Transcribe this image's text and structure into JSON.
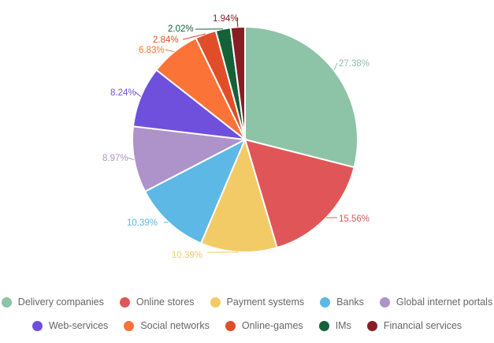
{
  "chart_data": {
    "type": "pie",
    "title": "",
    "legend_position": "bottom",
    "slices": [
      {
        "label": "Delivery companies",
        "value": 27.38,
        "display": "27.38%",
        "color": "#8dc3a7"
      },
      {
        "label": "Online stores",
        "value": 15.56,
        "display": "15.56%",
        "color": "#e05658"
      },
      {
        "label": "Payment systems",
        "value": 10.39,
        "display": "10.39%",
        "color": "#f2cb67"
      },
      {
        "label": "Banks",
        "value": 10.39,
        "display": "10.39%",
        "color": "#5db8e6"
      },
      {
        "label": "Global internet portals",
        "value": 8.97,
        "display": "8.97%",
        "color": "#ad93c9"
      },
      {
        "label": "Web-services",
        "value": 8.24,
        "display": "8.24%",
        "color": "#6e50dd"
      },
      {
        "label": "Social networks",
        "value": 6.83,
        "display": "6.83%",
        "color": "#fb7337"
      },
      {
        "label": "Online-games",
        "value": 2.84,
        "display": "2.84%",
        "color": "#e24d29"
      },
      {
        "label": "IMs",
        "value": 2.02,
        "display": "2.02%",
        "color": "#146139"
      },
      {
        "label": "Financial services",
        "value": 1.94,
        "display": "1.94%",
        "color": "#881e24"
      }
    ]
  }
}
